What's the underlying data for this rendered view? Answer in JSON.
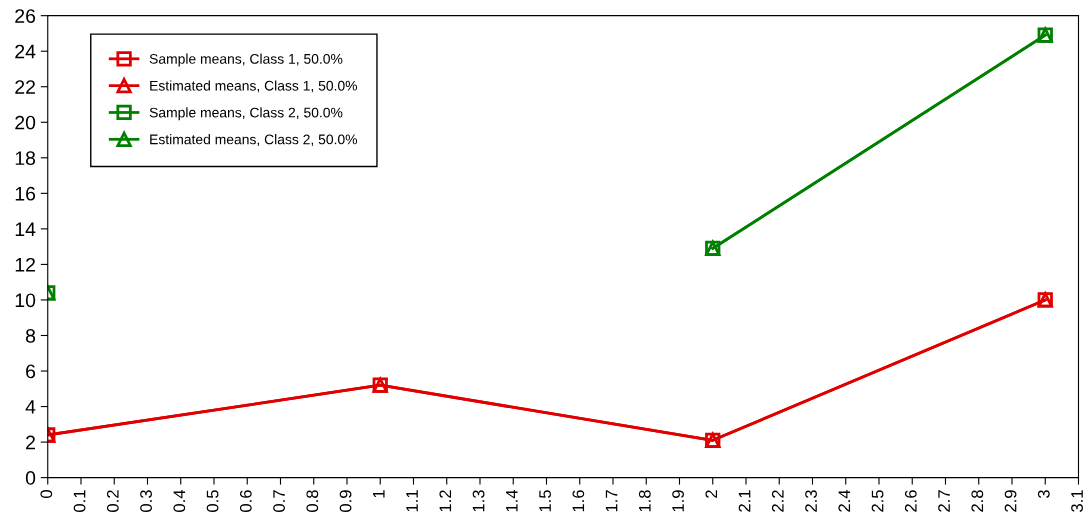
{
  "chart_data": {
    "type": "line",
    "x": [
      0,
      1,
      2,
      3
    ],
    "series": [
      {
        "name": "Sample means, Class 1, 50.0%",
        "color": "#e00000",
        "marker": "square",
        "values": [
          2.4,
          5.2,
          2.1,
          10.0
        ]
      },
      {
        "name": "Estimated means, Class 1, 50.0%",
        "color": "#e00000",
        "marker": "triangle",
        "values": [
          2.4,
          5.2,
          2.1,
          10.0
        ]
      },
      {
        "name": "Sample means, Class 2, 50.0%",
        "color": "#008000",
        "marker": "square",
        "values": [
          10.4,
          null,
          12.9,
          24.9
        ]
      },
      {
        "name": "Estimated means, Class 2, 50.0%",
        "color": "#008000",
        "marker": "triangle",
        "values": [
          10.4,
          null,
          12.9,
          24.9
        ]
      }
    ],
    "xlim": [
      0,
      3.1
    ],
    "xticks": [
      0,
      0.1,
      0.2,
      0.3,
      0.4,
      0.5,
      0.6,
      0.7,
      0.8,
      0.9,
      1,
      1.1,
      1.2,
      1.3,
      1.4,
      1.5,
      1.6,
      1.7,
      1.8,
      1.9,
      2,
      2.1,
      2.2,
      2.3,
      2.4,
      2.5,
      2.6,
      2.7,
      2.8,
      2.9,
      3,
      3.1
    ],
    "ylim": [
      0,
      26
    ],
    "yticks": [
      0,
      2,
      4,
      6,
      8,
      10,
      12,
      14,
      16,
      18,
      20,
      22,
      24,
      26
    ],
    "grid": false,
    "legend": "top left",
    "line_style": "solid"
  }
}
